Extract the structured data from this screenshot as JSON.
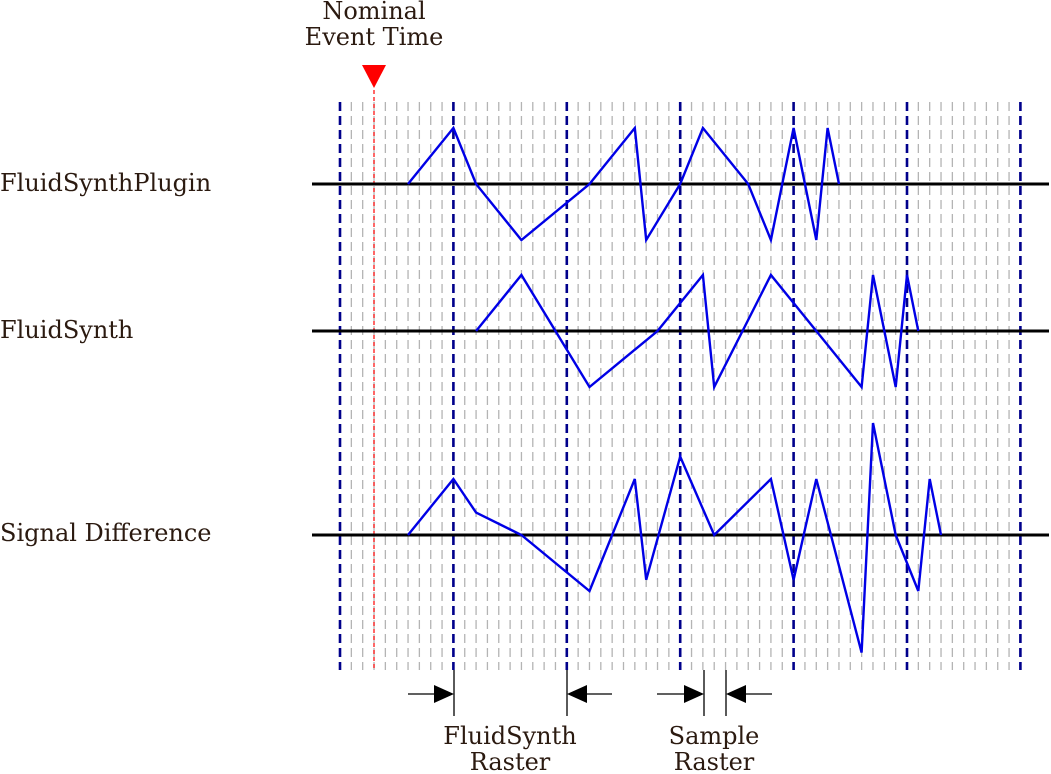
{
  "labels": {
    "nominal_line1": "Nominal",
    "nominal_line2": "Event Time",
    "row1": "FluidSynthPlugin",
    "row2": "FluidSynth",
    "row3": "Signal Difference",
    "raster1_line1": "FluidSynth",
    "raster1_line2": "Raster",
    "raster2_line1": "Sample",
    "raster2_line2": "Raster"
  },
  "colors": {
    "signal": "#0000e6",
    "fluidsynth_raster": "#00008b",
    "sample_raster": "#b4b4b4",
    "nominal_marker": "#ff0000",
    "baseline": "#000000"
  },
  "signals": {
    "fluidsynth_plugin": [
      [
        16,
        0
      ],
      [
        20,
        1
      ],
      [
        22,
        0
      ],
      [
        26,
        -1
      ],
      [
        32,
        0
      ],
      [
        36,
        1
      ],
      [
        37,
        -1
      ],
      [
        40,
        0
      ],
      [
        42,
        1
      ],
      [
        46,
        0
      ],
      [
        48,
        -1
      ],
      [
        50,
        1
      ],
      [
        52,
        -1
      ],
      [
        53,
        1
      ],
      [
        54,
        0
      ]
    ],
    "fluidsynth": [
      [
        22,
        0
      ],
      [
        26,
        1
      ],
      [
        32,
        -1
      ],
      [
        38,
        0
      ],
      [
        42,
        1
      ],
      [
        43,
        -1
      ],
      [
        48,
        1
      ],
      [
        52,
        0
      ],
      [
        56,
        -1
      ],
      [
        57,
        1
      ],
      [
        59,
        -1
      ],
      [
        60,
        1
      ],
      [
        61,
        0
      ]
    ],
    "signal_difference": [
      [
        16,
        0
      ],
      [
        20,
        1
      ],
      [
        22,
        0.4
      ],
      [
        26,
        0
      ],
      [
        32,
        -1
      ],
      [
        36,
        1
      ],
      [
        37,
        -0.8
      ],
      [
        40,
        1.4
      ],
      [
        43,
        0
      ],
      [
        48,
        1
      ],
      [
        50,
        -0.8
      ],
      [
        52,
        1
      ],
      [
        56,
        -2.1
      ],
      [
        57,
        2.0
      ],
      [
        59,
        0
      ],
      [
        61,
        -1
      ],
      [
        62,
        1
      ],
      [
        63,
        0
      ]
    ]
  }
}
